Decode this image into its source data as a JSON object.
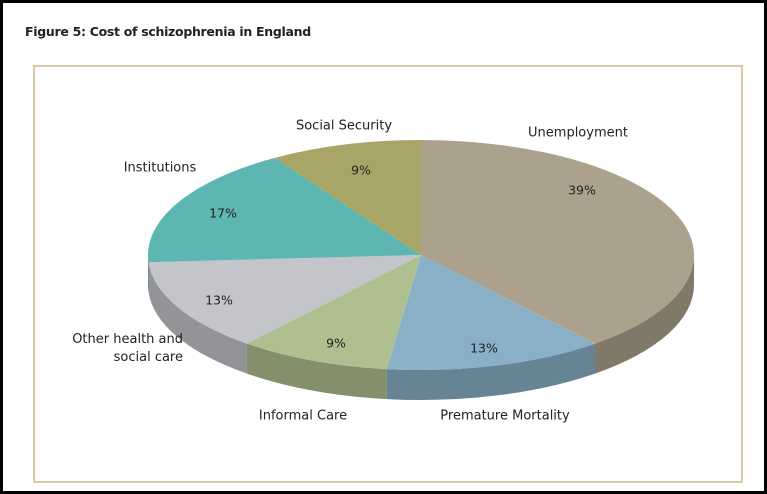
{
  "chart_data": {
    "type": "pie",
    "title": "Figure 5: Cost of schizophrenia in England",
    "categories": [
      "Unemployment",
      "Premature Mortality",
      "Informal Care",
      "Other health and social care",
      "Institutions",
      "Social Security"
    ],
    "values": [
      39,
      13,
      9,
      13,
      17,
      9
    ],
    "value_labels": [
      "39%",
      "13%",
      "9%",
      "13%",
      "17%",
      "9%"
    ],
    "colors": [
      "#aba18d",
      "#89b0c7",
      "#aec08f",
      "#c3c5cb",
      "#5db6b1",
      "#a9a566"
    ]
  }
}
